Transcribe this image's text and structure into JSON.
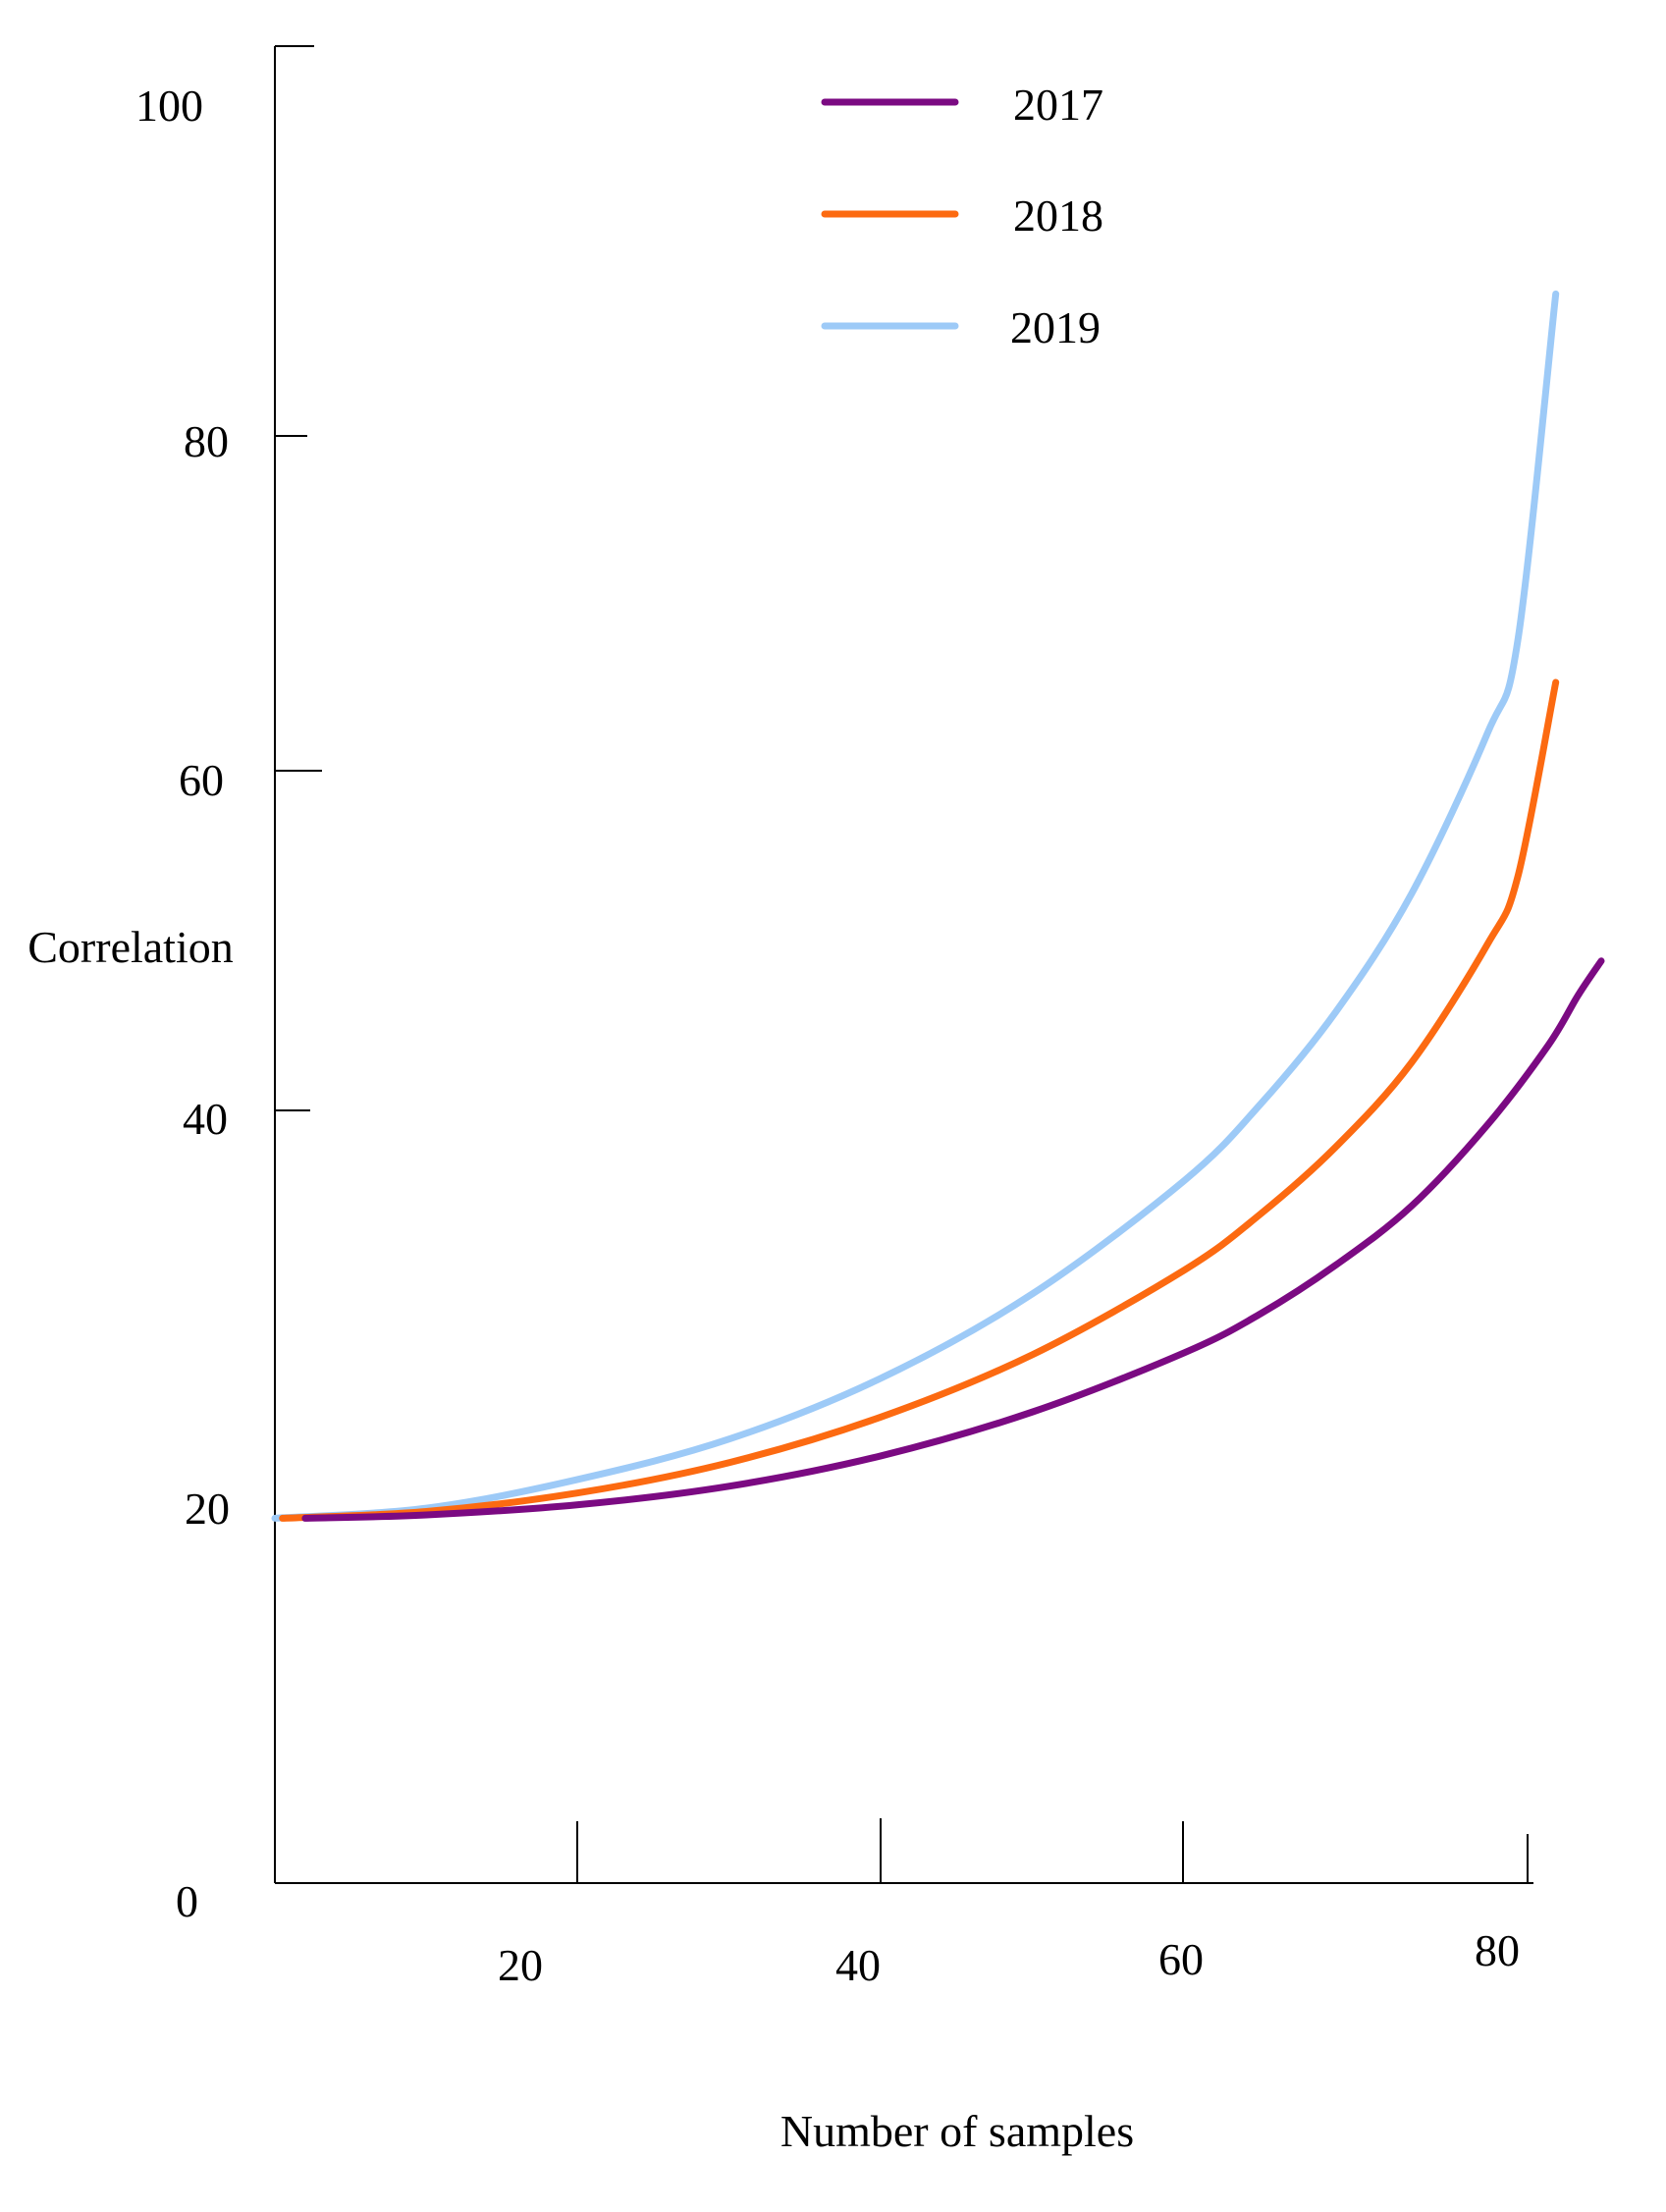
{
  "chart_data": {
    "type": "line",
    "title": "",
    "xlabel": "Number of samples",
    "ylabel": "Correlation",
    "x_ticks": [
      "20",
      "40",
      "60",
      "80"
    ],
    "y_ticks": [
      "0",
      "20",
      "40",
      "60",
      "80",
      "100"
    ],
    "grid": false,
    "legend": "top-center",
    "series": [
      {
        "name": "2017",
        "color": "#7b0a82",
        "x": [
          2,
          10,
          20,
          30,
          40,
          50,
          60,
          65,
          70,
          75,
          80,
          84,
          86,
          87.5
        ],
        "y": [
          20.5,
          20.7,
          21.3,
          22.4,
          24.2,
          26.8,
          30.3,
          32.6,
          35.5,
          39.0,
          43.8,
          48.5,
          51.5,
          53.5
        ]
      },
      {
        "name": "2018",
        "color": "#fc6a11",
        "x": [
          0.5,
          10,
          20,
          30,
          40,
          50,
          60,
          65,
          70,
          75,
          80,
          82,
          84.5
        ],
        "y": [
          20.5,
          20.9,
          22.0,
          23.8,
          26.5,
          30.2,
          35.2,
          38.5,
          42.5,
          47.5,
          54.5,
          58.5,
          70.0
        ]
      },
      {
        "name": "2019",
        "color": "#9dcaf7",
        "x": [
          0,
          10,
          20,
          30,
          40,
          50,
          60,
          65,
          70,
          75,
          80,
          82,
          84.5
        ],
        "y": [
          20.5,
          21.1,
          22.8,
          25.2,
          28.8,
          33.8,
          40.5,
          45.0,
          50.5,
          57.5,
          67.0,
          72.5,
          93.0
        ]
      }
    ]
  }
}
